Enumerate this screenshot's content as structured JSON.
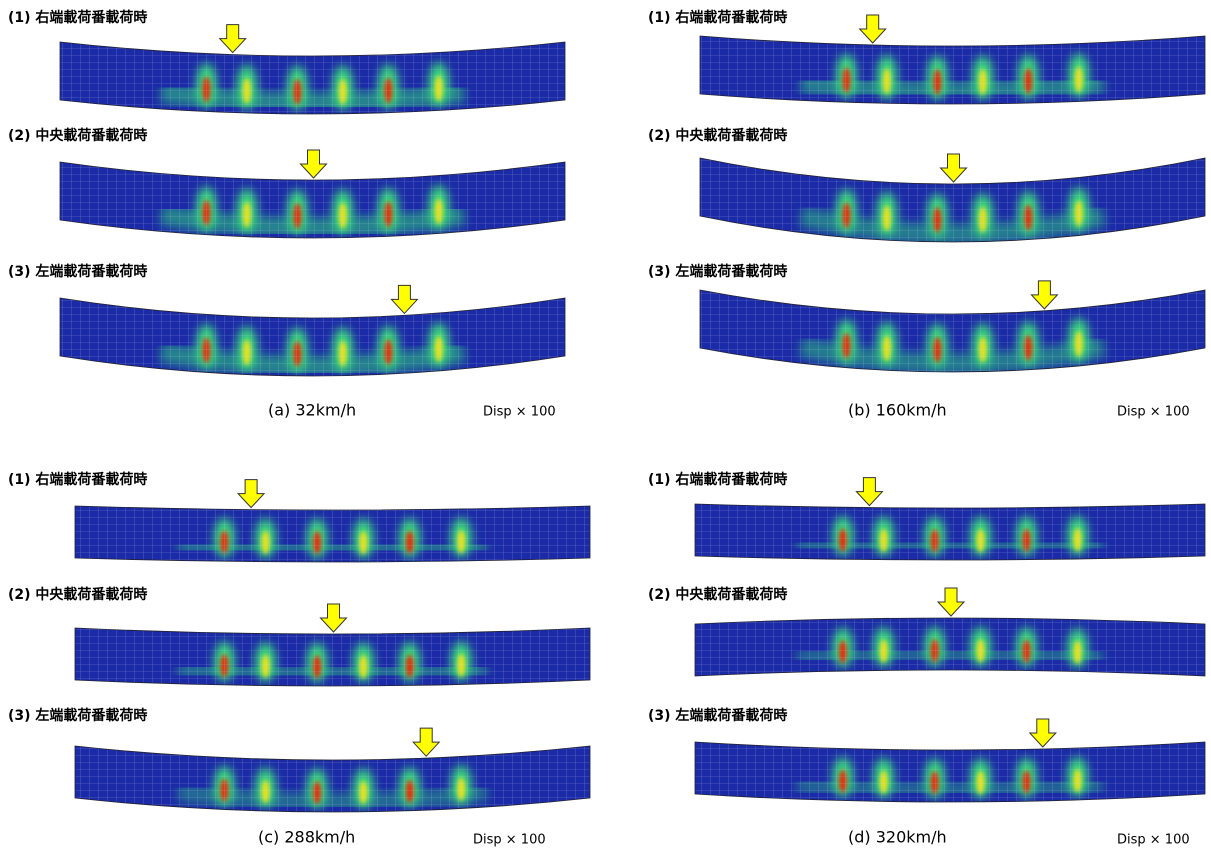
{
  "panels": [
    {
      "caption": "(a) 32km/h",
      "scale": "Disp × 100",
      "cases": [
        "(1) 右端載荷番載荷時",
        "(2) 中央載荷番載荷時",
        "(3) 左端載荷番載荷時"
      ]
    },
    {
      "caption": "(b) 160km/h",
      "scale": "Disp × 100",
      "cases": [
        "(1) 右端載荷番載荷時",
        "(2) 中央載荷番載荷時",
        "(3) 左端載荷番載荷時"
      ]
    },
    {
      "caption": "(c) 288km/h",
      "scale": "Disp × 100",
      "cases": [
        "(1) 右端載荷番載荷時",
        "(2) 中央載荷番載荷時",
        "(3) 左端載荷番載荷時"
      ]
    },
    {
      "caption": "(d) 320km/h",
      "scale": "Disp × 100",
      "cases": [
        "(1) 右端載荷番載荷時",
        "(2) 中央載荷番載荷時",
        "(3) 左端載荷番載荷時"
      ]
    }
  ]
}
